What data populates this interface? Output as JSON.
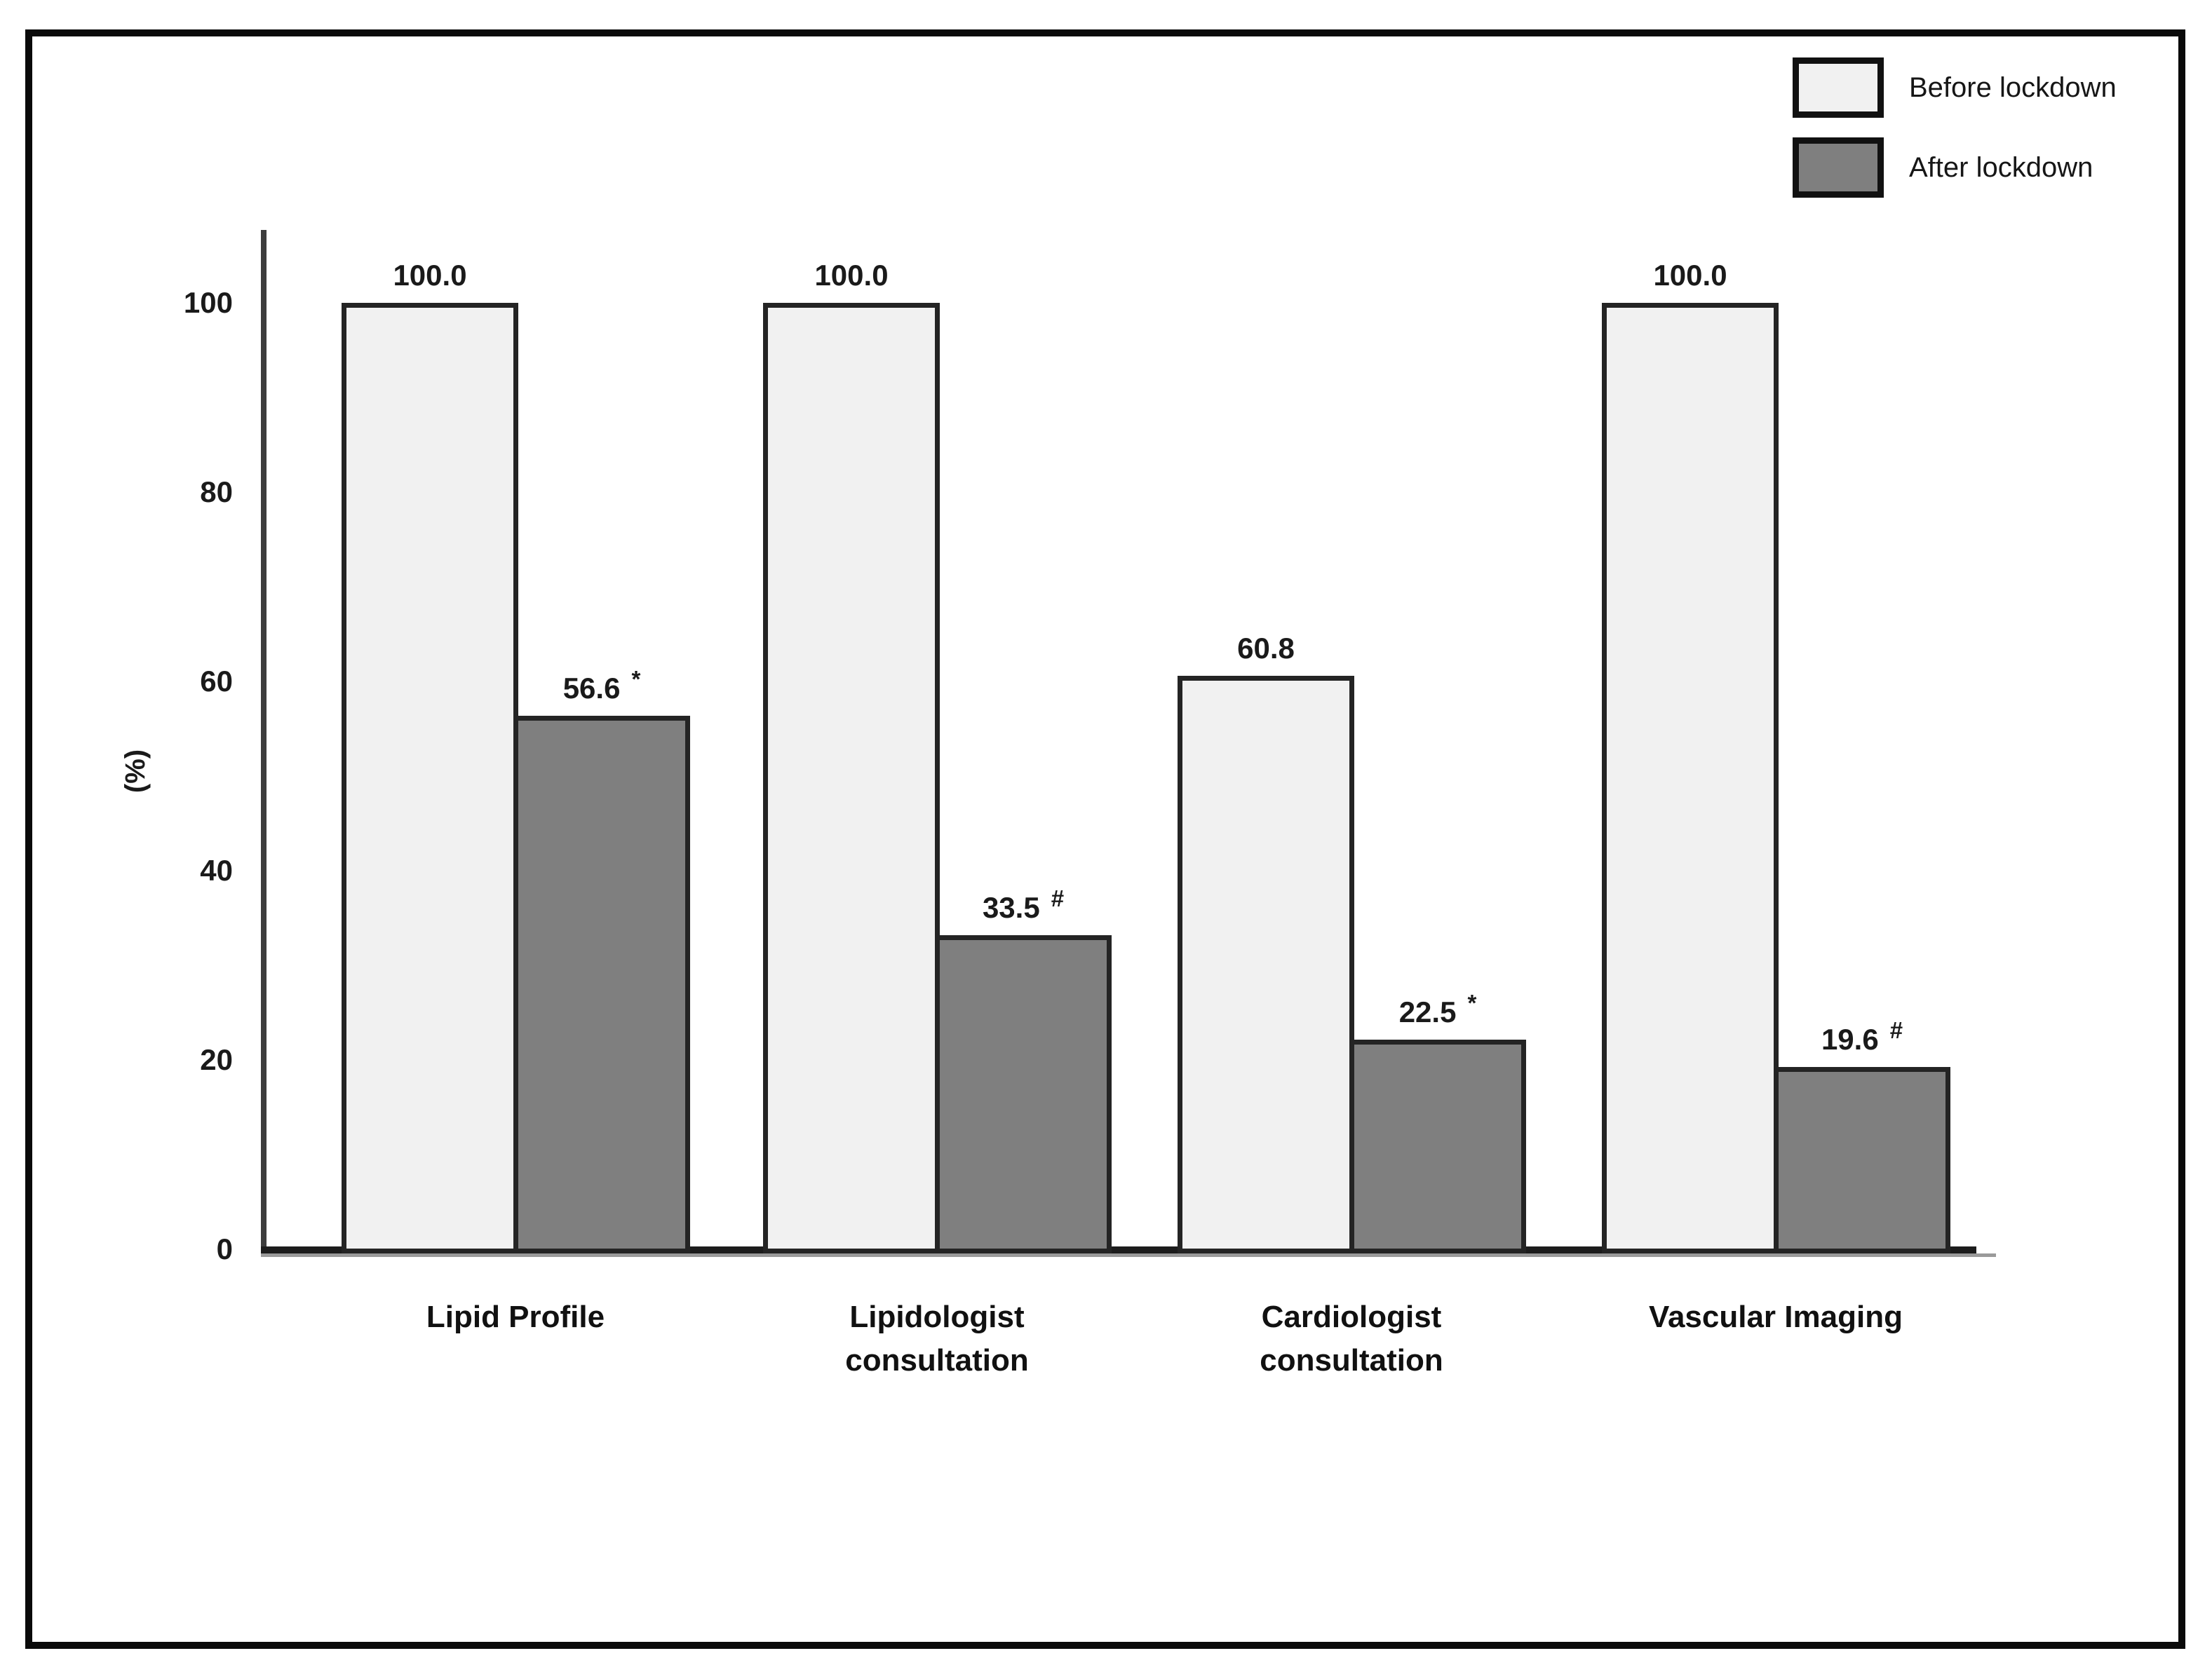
{
  "figure": {
    "background_color": "#ffffff",
    "border_color": "#0a0a0a"
  },
  "chart_data": {
    "type": "bar",
    "title": "",
    "xlabel": "",
    "ylabel": "(%)",
    "categories": [
      "Lipid Profile",
      "Lipidologist\nconsultation",
      "Cardiologist\nconsultation",
      "Vascular Imaging"
    ],
    "series": [
      {
        "name": "Before lockdown",
        "color": "#f1f1f1",
        "values": [
          100.0,
          100.0,
          60.8,
          100.0
        ],
        "labels": [
          "100.0",
          "100.0",
          "60.8",
          "100.0"
        ],
        "markers": [
          "",
          "",
          "",
          ""
        ]
      },
      {
        "name": "After lockdown",
        "color": "#7f7f7f",
        "values": [
          56.6,
          33.5,
          22.5,
          19.6
        ],
        "labels": [
          "56.6",
          "33.5",
          "22.5",
          "19.6"
        ],
        "markers": [
          "*",
          "#",
          "*",
          "#"
        ]
      }
    ],
    "yticks": [
      100,
      80,
      60,
      40,
      20,
      0
    ],
    "ylim": [
      0,
      107.5
    ],
    "grid": false,
    "legend": {
      "position": "top-right",
      "entries": [
        {
          "label": "Before lockdown",
          "swatch_color": "#f1f1f1"
        },
        {
          "label": "After lockdown",
          "swatch_color": "#7f7f7f"
        }
      ]
    }
  }
}
